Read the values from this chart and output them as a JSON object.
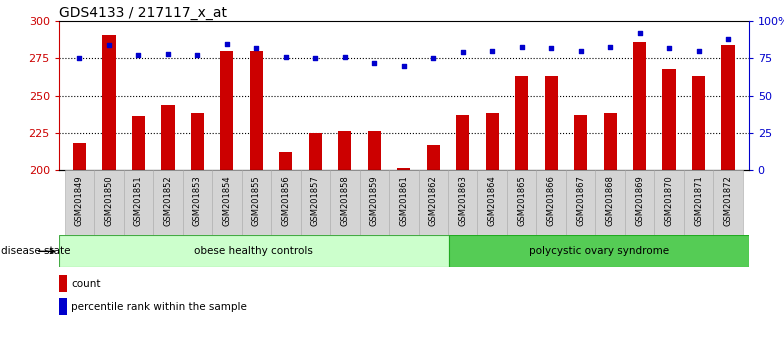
{
  "title": "GDS4133 / 217117_x_at",
  "samples": [
    "GSM201849",
    "GSM201850",
    "GSM201851",
    "GSM201852",
    "GSM201853",
    "GSM201854",
    "GSM201855",
    "GSM201856",
    "GSM201857",
    "GSM201858",
    "GSM201859",
    "GSM201861",
    "GSM201862",
    "GSM201863",
    "GSM201864",
    "GSM201865",
    "GSM201866",
    "GSM201867",
    "GSM201868",
    "GSM201869",
    "GSM201870",
    "GSM201871",
    "GSM201872"
  ],
  "counts": [
    218,
    291,
    236,
    244,
    238,
    280,
    280,
    212,
    225,
    226,
    226,
    201,
    217,
    237,
    238,
    263,
    263,
    237,
    238,
    286,
    268,
    263,
    284
  ],
  "percentile_ranks": [
    75,
    84,
    77,
    78,
    77,
    85,
    82,
    76,
    75,
    76,
    72,
    70,
    75,
    79,
    80,
    83,
    82,
    80,
    83,
    92,
    82,
    80,
    88
  ],
  "group1_label": "obese healthy controls",
  "group2_label": "polycystic ovary syndrome",
  "group1_count": 13,
  "group2_count": 10,
  "disease_state_label": "disease state",
  "legend_count_label": "count",
  "legend_pct_label": "percentile rank within the sample",
  "ylim_left": [
    200,
    300
  ],
  "ylim_right": [
    0,
    100
  ],
  "yticks_left": [
    200,
    225,
    250,
    275,
    300
  ],
  "yticks_right": [
    0,
    25,
    50,
    75,
    100
  ],
  "bar_color": "#cc0000",
  "dot_color": "#0000cc",
  "group1_bg": "#ccffcc",
  "group2_bg": "#55cc55",
  "title_fontsize": 10,
  "tick_fontsize": 6,
  "label_fontsize": 7.5
}
